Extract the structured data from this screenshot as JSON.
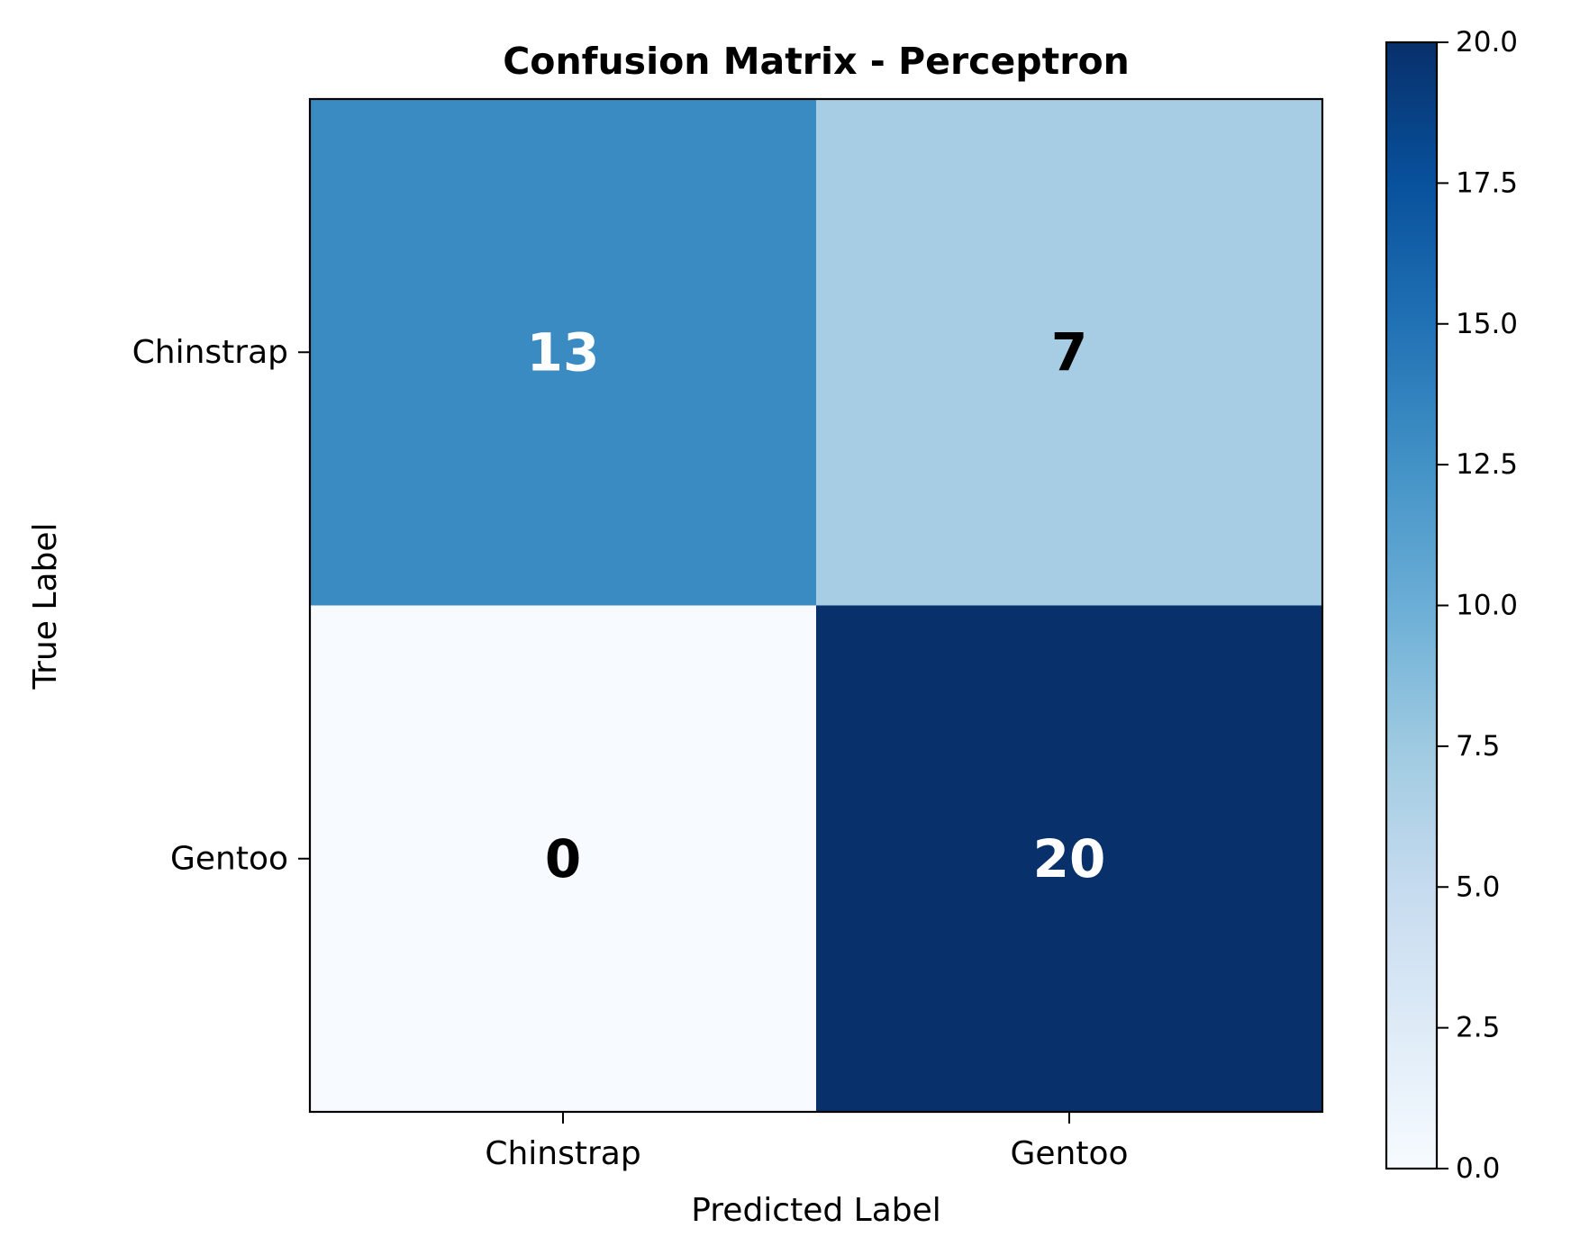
{
  "chart_data": {
    "type": "heatmap",
    "title": "Confusion Matrix - Perceptron",
    "xlabel": "Predicted Label",
    "ylabel": "True Label",
    "x_categories": [
      "Chinstrap",
      "Gentoo"
    ],
    "y_categories": [
      "Chinstrap",
      "Gentoo"
    ],
    "matrix": [
      [
        13,
        7
      ],
      [
        0,
        20
      ]
    ],
    "cell_text": [
      [
        "13",
        "7"
      ],
      [
        "0",
        "20"
      ]
    ],
    "colormap": "Blues",
    "colorbar": {
      "range": [
        0,
        20
      ],
      "ticks": [
        0,
        2.5,
        5,
        7.5,
        10,
        12.5,
        15,
        17.5,
        20
      ],
      "tick_labels": [
        "0.0",
        "2.5",
        "5.0",
        "7.5",
        "10.0",
        "12.5",
        "15.0",
        "17.5",
        "20.0"
      ]
    },
    "grid": false
  },
  "colors": {
    "cmap_stops": [
      "#f7fbff",
      "#deebf7",
      "#c6dbef",
      "#9ecae1",
      "#6baed6",
      "#4292c6",
      "#2171b5",
      "#08519c",
      "#08306b"
    ],
    "text_light": "#ffffff",
    "text_dark": "#000000",
    "frame": "#000000"
  }
}
